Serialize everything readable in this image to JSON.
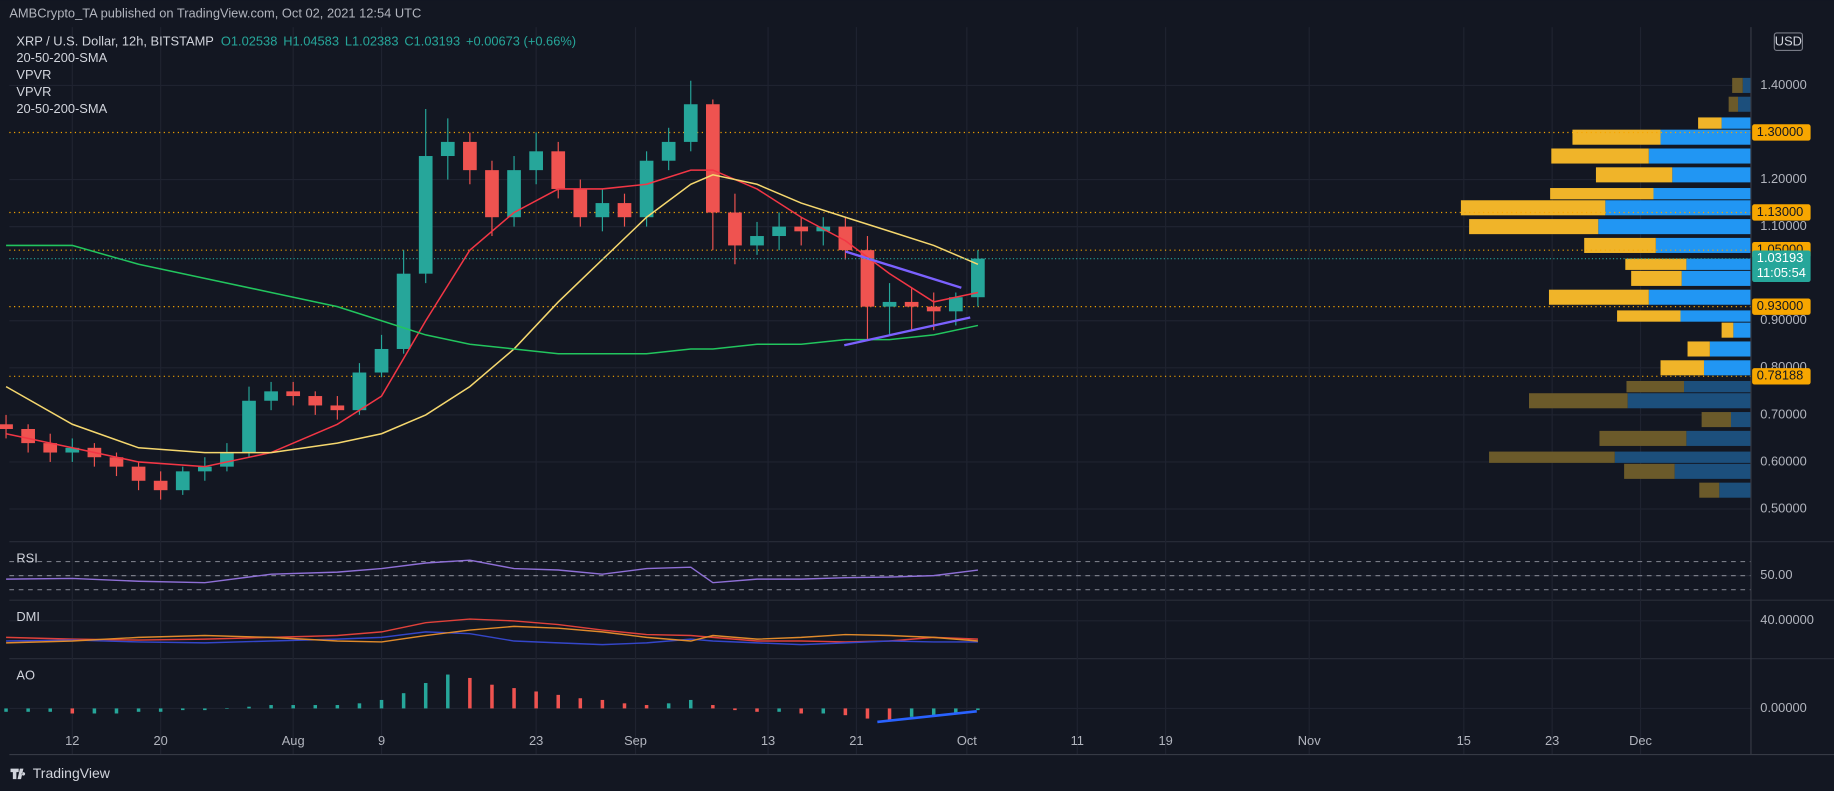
{
  "header": "AMBCrypto_TA published on TradingView.com, Oct 02, 2021 12:54 UTC",
  "footer": "TradingView",
  "chart_data": {
    "type": "candlestick",
    "title": "XRP / U.S. Dollar, 12h, BITSTAMP",
    "ohlc_labels": [
      "O1.02538",
      "H1.04583",
      "L1.02383",
      "C1.03193"
    ],
    "change": "+0.00673 (+0.66%)",
    "indicators": [
      "20-50-200-SMA",
      "VPVR",
      "VPVR",
      "20-50-200-SMA"
    ],
    "currency": "USD",
    "x": [
      187,
      189,
      191,
      193,
      195,
      197,
      199,
      201,
      203,
      205,
      207,
      209,
      211,
      213,
      215,
      217,
      219,
      221,
      223,
      225,
      227,
      229,
      231,
      233,
      235,
      237,
      239,
      241,
      243,
      245,
      247,
      249,
      251,
      253,
      255,
      257,
      259,
      261,
      263,
      265,
      267,
      269,
      271,
      273,
      275
    ],
    "open": [
      0.68,
      0.67,
      0.64,
      0.62,
      0.63,
      0.61,
      0.59,
      0.56,
      0.54,
      0.58,
      0.59,
      0.62,
      0.73,
      0.75,
      0.74,
      0.72,
      0.71,
      0.79,
      0.84,
      1.0,
      1.25,
      1.28,
      1.22,
      1.12,
      1.22,
      1.26,
      1.18,
      1.12,
      1.15,
      1.12,
      1.24,
      1.28,
      1.36,
      1.13,
      1.06,
      1.08,
      1.1,
      1.09,
      1.1,
      1.05,
      0.93,
      0.94,
      0.93,
      0.92,
      0.95
    ],
    "high": [
      0.7,
      0.68,
      0.66,
      0.65,
      0.64,
      0.62,
      0.6,
      0.58,
      0.59,
      0.61,
      0.64,
      0.76,
      0.77,
      0.77,
      0.75,
      0.74,
      0.81,
      0.87,
      1.05,
      1.35,
      1.33,
      1.3,
      1.24,
      1.25,
      1.3,
      1.28,
      1.2,
      1.18,
      1.17,
      1.26,
      1.31,
      1.41,
      1.37,
      1.17,
      1.11,
      1.13,
      1.12,
      1.12,
      1.12,
      1.08,
      0.98,
      0.97,
      0.96,
      0.96,
      1.05
    ],
    "low": [
      0.65,
      0.62,
      0.6,
      0.6,
      0.59,
      0.57,
      0.54,
      0.52,
      0.53,
      0.56,
      0.58,
      0.61,
      0.71,
      0.72,
      0.7,
      0.69,
      0.7,
      0.78,
      0.83,
      0.98,
      1.2,
      1.19,
      1.08,
      1.1,
      1.19,
      1.16,
      1.1,
      1.09,
      1.1,
      1.1,
      1.22,
      1.26,
      1.05,
      1.02,
      1.04,
      1.05,
      1.06,
      1.06,
      1.03,
      0.86,
      0.87,
      0.88,
      0.88,
      0.89,
      0.93
    ],
    "close": [
      0.67,
      0.64,
      0.62,
      0.63,
      0.61,
      0.59,
      0.56,
      0.54,
      0.58,
      0.59,
      0.62,
      0.73,
      0.75,
      0.74,
      0.72,
      0.71,
      0.79,
      0.84,
      1.0,
      1.25,
      1.28,
      1.22,
      1.12,
      1.22,
      1.26,
      1.18,
      1.12,
      1.15,
      1.12,
      1.24,
      1.28,
      1.36,
      1.13,
      1.06,
      1.08,
      1.1,
      1.09,
      1.1,
      1.05,
      0.93,
      0.94,
      0.93,
      0.92,
      0.95,
      1.032
    ],
    "colors": {
      "up": "#26a69a",
      "down": "#ef5350"
    },
    "xlim": [
      187.3,
      345
    ],
    "xticks": [
      {
        "value": 193,
        "label": "12"
      },
      {
        "value": 201,
        "label": "20"
      },
      {
        "value": 213,
        "label": "Aug"
      },
      {
        "value": 221,
        "label": "9"
      },
      {
        "value": 235,
        "label": "23"
      },
      {
        "value": 244,
        "label": "Sep"
      },
      {
        "value": 256,
        "label": "13"
      },
      {
        "value": 264,
        "label": "21"
      },
      {
        "value": 274,
        "label": "Oct"
      },
      {
        "value": 284,
        "label": "11"
      },
      {
        "value": 292,
        "label": "19"
      },
      {
        "value": 305,
        "label": "Nov"
      },
      {
        "value": 319,
        "label": "15"
      },
      {
        "value": 327,
        "label": "23"
      },
      {
        "value": 335,
        "label": "Dec"
      }
    ],
    "ylim": [
      0.433,
      1.524
    ],
    "yticks": [
      {
        "value": 1.4,
        "label": "1.40000"
      },
      {
        "value": 1.2,
        "label": "1.20000"
      },
      {
        "value": 1.1,
        "label": "1.10000"
      },
      {
        "value": 0.9,
        "label": "0.90000"
      },
      {
        "value": 0.8,
        "label": "0.80000"
      },
      {
        "value": 0.7,
        "label": "0.70000"
      },
      {
        "value": 0.6,
        "label": "0.60000"
      },
      {
        "value": 0.5,
        "label": "0.50000"
      }
    ],
    "grid": true,
    "levels": [
      {
        "value": 1.3,
        "label": "1.30000"
      },
      {
        "value": 1.13,
        "label": "1.13000"
      },
      {
        "value": 1.05,
        "label": "1.05000"
      },
      {
        "value": 0.93,
        "label": "0.93000"
      },
      {
        "value": 0.78188,
        "label": "0.78188"
      }
    ],
    "level_color": "#f7a600",
    "last_price": {
      "value": 1.03193,
      "label": "1.03193"
    },
    "countdown": "11:05:54",
    "sma": {
      "x": [
        187,
        193,
        199,
        205,
        211,
        217,
        221,
        225,
        229,
        233,
        237,
        241,
        245,
        249,
        251,
        255,
        259,
        263,
        267,
        271,
        275
      ],
      "series": [
        {
          "color": "#f23645",
          "values": [
            0.66,
            0.63,
            0.6,
            0.59,
            0.62,
            0.68,
            0.74,
            0.9,
            1.05,
            1.13,
            1.18,
            1.18,
            1.19,
            1.22,
            1.22,
            1.18,
            1.12,
            1.07,
            1.0,
            0.94,
            0.96
          ]
        },
        {
          "color": "#f5d76e",
          "values": [
            0.76,
            0.68,
            0.63,
            0.62,
            0.62,
            0.64,
            0.66,
            0.7,
            0.76,
            0.84,
            0.94,
            1.03,
            1.12,
            1.19,
            1.21,
            1.19,
            1.15,
            1.12,
            1.09,
            1.06,
            1.02
          ]
        },
        {
          "color": "#22c55e",
          "values": [
            1.06,
            1.06,
            1.02,
            0.99,
            0.96,
            0.93,
            0.9,
            0.87,
            0.85,
            0.84,
            0.83,
            0.83,
            0.83,
            0.84,
            0.84,
            0.85,
            0.85,
            0.86,
            0.86,
            0.87,
            0.89
          ]
        }
      ]
    },
    "trendlines": [
      {
        "color": "#7b61ff",
        "x": [
          263,
          273.5
        ],
        "values": [
          1.047,
          0.97
        ]
      },
      {
        "color": "#7b61ff",
        "x": [
          262.9,
          274.3
        ],
        "values": [
          0.848,
          0.907
        ]
      }
    ],
    "volume_profile": {
      "prices": [
        1.4,
        1.36,
        1.32,
        1.29,
        1.25,
        1.21,
        1.17,
        1.14,
        1.1,
        1.06,
        1.02,
        0.99,
        0.95,
        0.91,
        0.88,
        0.84,
        0.8,
        0.76,
        0.73,
        0.69,
        0.65,
        0.61,
        0.58,
        0.54
      ],
      "up": [
        7,
        11,
        25,
        77,
        87,
        67,
        83,
        124,
        130,
        81,
        55,
        59,
        87,
        60,
        15,
        35,
        40,
        57,
        105,
        17,
        55,
        116,
        65,
        27
      ],
      "down": [
        9,
        8,
        20,
        75,
        83,
        65,
        88,
        123,
        110,
        61,
        52,
        43,
        85,
        54,
        10,
        19,
        37,
        49,
        84,
        25,
        74,
        107,
        43,
        17
      ],
      "value_area": [
        0.78,
        1.34
      ],
      "up_color": "#2196f3",
      "down_color": "#f0b429",
      "muted_up_color": "#1c4f7c",
      "muted_down_color": "#6b5a2a"
    },
    "panes": [
      {
        "name": "RSI",
        "type": "line",
        "color": "#8e6fd6",
        "x": [
          187,
          193,
          199,
          205,
          211,
          217,
          221,
          225,
          229,
          233,
          237,
          241,
          245,
          249,
          251,
          255,
          259,
          263,
          267,
          271,
          275
        ],
        "values": [
          45,
          46,
          42,
          40,
          52,
          55,
          60,
          68,
          72,
          60,
          58,
          52,
          60,
          62,
          40,
          45,
          45,
          47,
          48,
          50,
          58
        ],
        "ylim": [
          16.7,
          95
        ],
        "levels": [
          70,
          50,
          30
        ],
        "yticks": [
          {
            "value": 50,
            "label": "50.00"
          }
        ]
      },
      {
        "name": "DMI",
        "type": "lines",
        "x": [
          187,
          193,
          199,
          205,
          211,
          217,
          221,
          225,
          229,
          233,
          237,
          241,
          245,
          249,
          251,
          255,
          259,
          263,
          267,
          271,
          275
        ],
        "series": [
          {
            "color": "#e0413a",
            "values": [
              22,
              20,
              19,
              20,
              22,
              24,
              28,
              38,
              42,
              40,
              36,
              30,
              25,
              24,
              22,
              18,
              18,
              17,
              18,
              22,
              20
            ]
          },
          {
            "color": "#3446c9",
            "values": [
              18,
              19,
              17,
              16,
              18,
              20,
              22,
              28,
              26,
              18,
              16,
              14,
              16,
              20,
              18,
              16,
              14,
              16,
              18,
              17,
              17
            ]
          },
          {
            "color": "#e08a2b",
            "values": [
              16,
              18,
              22,
              24,
              22,
              18,
              17,
              24,
              30,
              34,
              32,
              28,
              22,
              18,
              24,
              20,
              22,
              25,
              24,
              22,
              18
            ]
          }
        ],
        "ylim": [
          0,
          60
        ],
        "yticks": [
          {
            "value": 40,
            "label": "40.00000"
          }
        ]
      },
      {
        "name": "AO",
        "type": "histogram",
        "x": [
          187,
          189,
          191,
          193,
          195,
          197,
          199,
          201,
          203,
          205,
          207,
          209,
          211,
          213,
          215,
          217,
          219,
          221,
          223,
          225,
          227,
          229,
          231,
          233,
          235,
          237,
          239,
          241,
          243,
          245,
          247,
          249,
          251,
          253,
          255,
          257,
          259,
          261,
          263,
          265,
          267,
          269,
          271,
          273,
          275
        ],
        "values": [
          -0.02,
          -0.02,
          -0.02,
          -0.03,
          -0.03,
          -0.03,
          -0.02,
          -0.02,
          -0.01,
          -0.01,
          0.0,
          0.01,
          0.02,
          0.02,
          0.02,
          0.02,
          0.03,
          0.05,
          0.09,
          0.15,
          0.2,
          0.18,
          0.14,
          0.12,
          0.1,
          0.08,
          0.06,
          0.05,
          0.03,
          0.02,
          0.03,
          0.05,
          0.02,
          -0.01,
          -0.02,
          -0.02,
          -0.03,
          -0.03,
          -0.04,
          -0.06,
          -0.07,
          -0.05,
          -0.04,
          -0.03,
          -0.01
        ],
        "colors": {
          "up": "#26a69a",
          "down": "#ef5350"
        },
        "ylim": [
          -0.1,
          0.28
        ],
        "yticks": [
          {
            "value": 0,
            "label": "0.00000"
          }
        ],
        "trendline": {
          "color": "#2962ff",
          "x": [
            265.9,
            274.9
          ],
          "values": [
            -0.08,
            -0.017
          ]
        }
      }
    ]
  }
}
